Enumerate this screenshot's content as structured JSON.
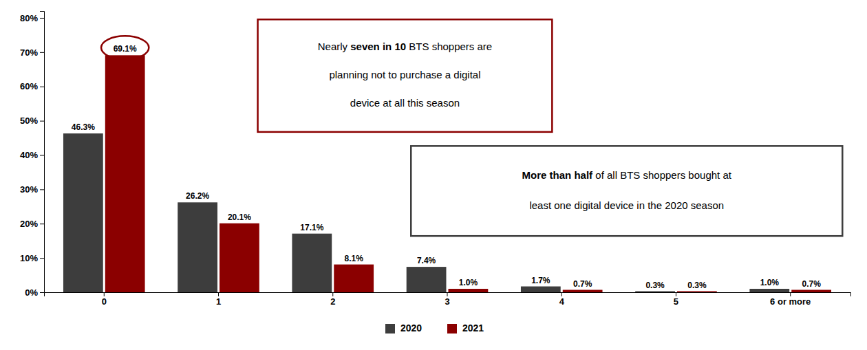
{
  "chart_data": {
    "type": "bar",
    "categories": [
      "0",
      "1",
      "2",
      "3",
      "4",
      "5",
      "6 or more"
    ],
    "series": [
      {
        "name": "2020",
        "color": "#3d3d3d",
        "values": [
          46.3,
          26.2,
          17.1,
          7.4,
          1.7,
          0.3,
          1.0
        ],
        "value_labels": [
          "46.3%",
          "26.2%",
          "17.1%",
          "7.4%",
          "1.7%",
          "0.3%",
          "1.0%"
        ]
      },
      {
        "name": "2021",
        "color": "#8b0000",
        "values": [
          69.1,
          20.1,
          8.1,
          1.0,
          0.7,
          0.3,
          0.7
        ],
        "value_labels": [
          "69.1%",
          "20.1%",
          "8.1%",
          "1.0%",
          "0.7%",
          "0.3%",
          "0.7%"
        ]
      }
    ],
    "ylim": [
      0,
      82
    ],
    "yticks": [
      {
        "value": 0,
        "label": "0%"
      },
      {
        "value": 10,
        "label": "10%"
      },
      {
        "value": 20,
        "label": "20%"
      },
      {
        "value": 30,
        "label": "30%"
      },
      {
        "value": 40,
        "label": "40%"
      },
      {
        "value": 50,
        "label": "50%"
      },
      {
        "value": 60,
        "label": "60%"
      },
      {
        "value": 70,
        "label": "70%"
      },
      {
        "value": 80,
        "label": "80%"
      }
    ],
    "grid": false,
    "data_labels": true,
    "legend": "bottom",
    "annotations": [
      {
        "type": "box",
        "color": "#8b0000",
        "lines": [
          [
            {
              "text": "Nearly ",
              "bold": false
            },
            {
              "text": "seven in 10",
              "bold": true
            },
            {
              "text": " BTS shoppers are",
              "bold": false
            }
          ],
          [
            {
              "text": "planning not to purchase a digital",
              "bold": false
            }
          ],
          [
            {
              "text": "device at all this season",
              "bold": false
            }
          ]
        ]
      },
      {
        "type": "box",
        "color": "#3d3d3d",
        "lines": [
          [
            {
              "text": "More than half",
              "bold": true
            },
            {
              "text": " of all BTS shoppers bought at",
              "bold": false
            }
          ],
          [
            {
              "text": "least one digital device in the 2020 season",
              "bold": false
            }
          ]
        ]
      },
      {
        "type": "circle",
        "color": "#8b0000",
        "series": 1,
        "index": 0
      }
    ]
  }
}
